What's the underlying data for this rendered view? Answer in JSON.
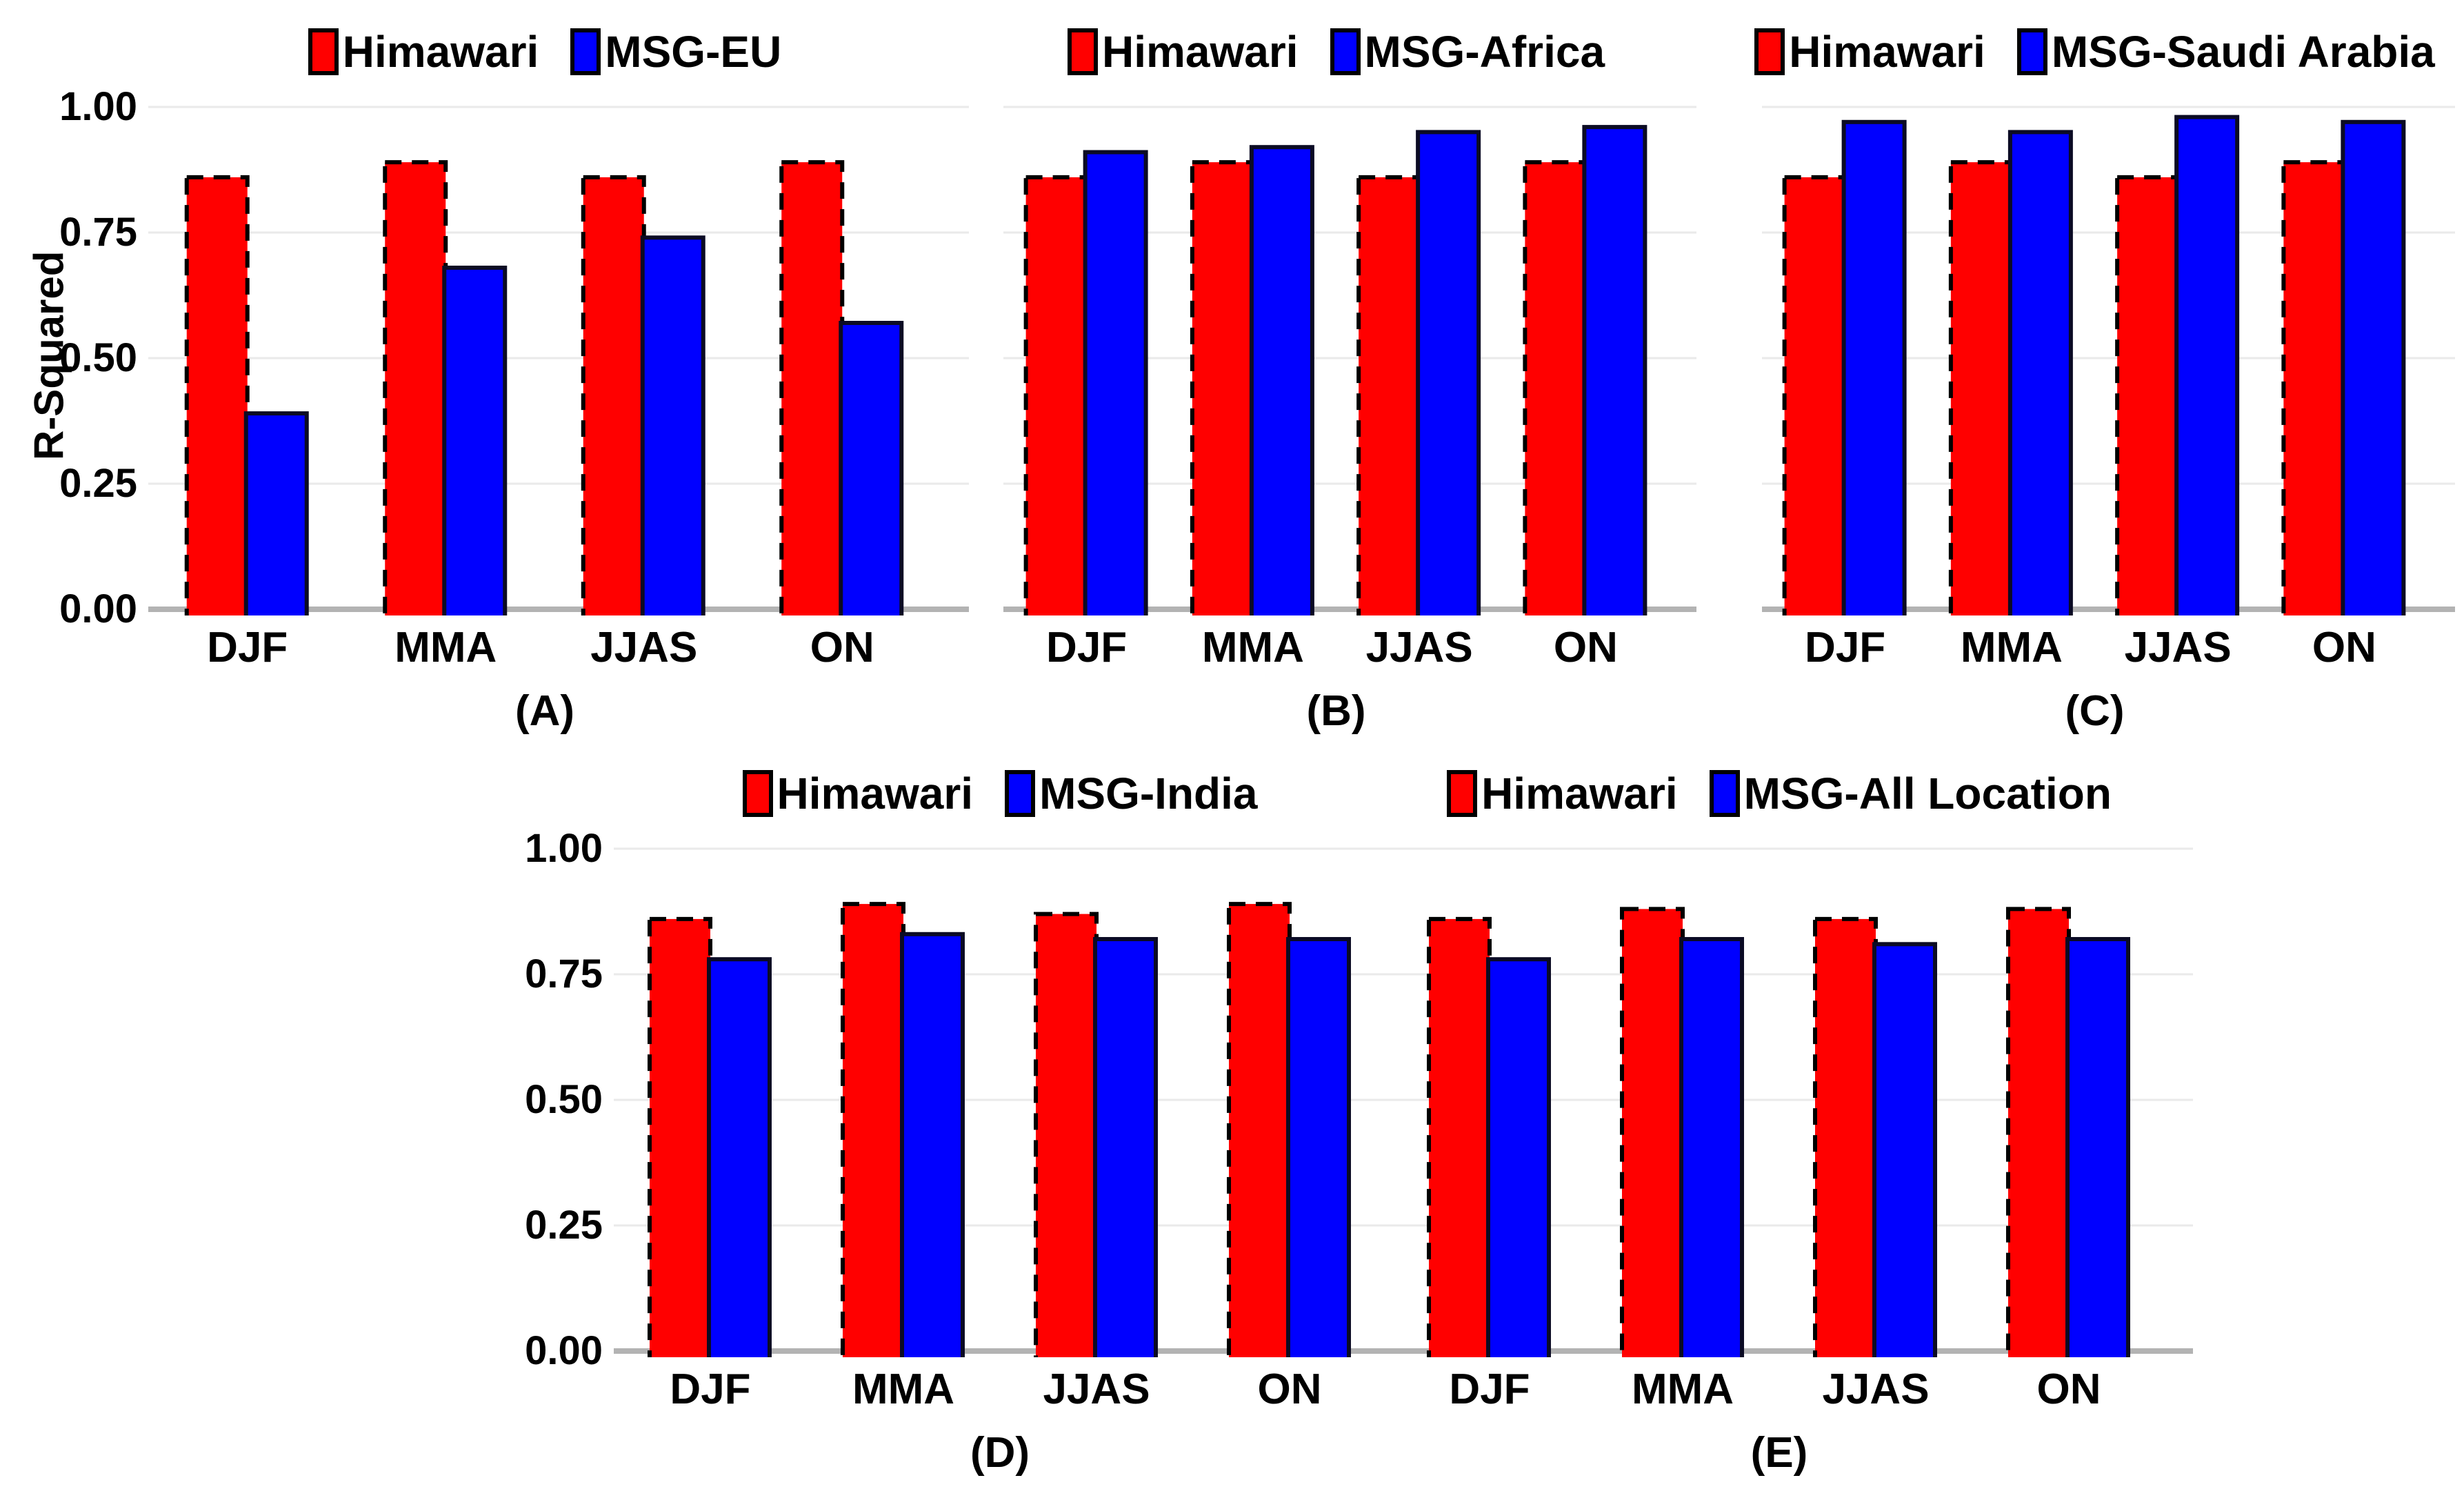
{
  "figure": {
    "ylabel": "R-Squared",
    "ytick_labels": [
      "1.00",
      "0.75",
      "0.50",
      "0.25",
      "0.00"
    ],
    "categories": [
      "DJF",
      "MMA",
      "JJAS",
      "ON"
    ],
    "colors": {
      "himawari": "#FF0000",
      "msg": "#0000FF",
      "gridline": "#EAEAEA",
      "baseline": "#B3B3B3"
    }
  },
  "chart_data": [
    {
      "type": "bar",
      "panel_label": "(A)",
      "ylabel": "R-Squared",
      "ylim": [
        0,
        1
      ],
      "yticks": [
        1.0,
        0.75,
        0.5,
        0.25,
        0.0
      ],
      "ytick_labels": [
        "1.00",
        "0.75",
        "0.50",
        "0.25",
        "0.00"
      ],
      "categories": [
        "DJF",
        "MMA",
        "JJAS",
        "ON"
      ],
      "grid": true,
      "legend_position": "top",
      "series": [
        {
          "name": "Himawari",
          "color": "#FF0000",
          "values": [
            0.86,
            0.89,
            0.86,
            0.89
          ]
        },
        {
          "name": "MSG-EU",
          "color": "#0000FF",
          "values": [
            0.39,
            0.68,
            0.74,
            0.57
          ]
        }
      ]
    },
    {
      "type": "bar",
      "panel_label": "(B)",
      "ylim": [
        0,
        1
      ],
      "yticks": [
        1.0,
        0.75,
        0.5,
        0.25,
        0.0
      ],
      "ytick_labels": [
        "1.00",
        "0.75",
        "0.50",
        "0.25",
        "0.00"
      ],
      "categories": [
        "DJF",
        "MMA",
        "JJAS",
        "ON"
      ],
      "grid": true,
      "legend_position": "top",
      "series": [
        {
          "name": "Himawari",
          "color": "#FF0000",
          "values": [
            0.86,
            0.89,
            0.86,
            0.89
          ]
        },
        {
          "name": "MSG-Africa",
          "color": "#0000FF",
          "values": [
            0.91,
            0.92,
            0.95,
            0.96
          ]
        }
      ]
    },
    {
      "type": "bar",
      "panel_label": "(C)",
      "ylim": [
        0,
        1
      ],
      "yticks": [
        1.0,
        0.75,
        0.5,
        0.25,
        0.0
      ],
      "ytick_labels": [
        "1.00",
        "0.75",
        "0.50",
        "0.25",
        "0.00"
      ],
      "categories": [
        "DJF",
        "MMA",
        "JJAS",
        "ON"
      ],
      "grid": true,
      "legend_position": "top",
      "series": [
        {
          "name": "Himawari",
          "color": "#FF0000",
          "values": [
            0.86,
            0.89,
            0.86,
            0.89
          ]
        },
        {
          "name": "MSG-Saudi Arabia",
          "color": "#0000FF",
          "values": [
            0.97,
            0.95,
            0.98,
            0.97
          ]
        }
      ]
    },
    {
      "type": "bar",
      "panel_label": "(D)",
      "ylim": [
        0,
        1
      ],
      "yticks": [
        1.0,
        0.75,
        0.5,
        0.25,
        0.0
      ],
      "ytick_labels": [
        "1.00",
        "0.75",
        "0.50",
        "0.25",
        "0.00"
      ],
      "categories": [
        "DJF",
        "MMA",
        "JJAS",
        "ON"
      ],
      "grid": true,
      "legend_position": "top",
      "series": [
        {
          "name": "Himawari",
          "color": "#FF0000",
          "values": [
            0.86,
            0.89,
            0.87,
            0.89
          ]
        },
        {
          "name": "MSG-India",
          "color": "#0000FF",
          "values": [
            0.78,
            0.83,
            0.82,
            0.82
          ]
        }
      ]
    },
    {
      "type": "bar",
      "panel_label": "(E)",
      "ylim": [
        0,
        1
      ],
      "yticks": [
        1.0,
        0.75,
        0.5,
        0.25,
        0.0
      ],
      "ytick_labels": [
        "1.00",
        "0.75",
        "0.50",
        "0.25",
        "0.00"
      ],
      "categories": [
        "DJF",
        "MMA",
        "JJAS",
        "ON"
      ],
      "grid": true,
      "legend_position": "top",
      "series": [
        {
          "name": "Himawari",
          "color": "#FF0000",
          "values": [
            0.86,
            0.88,
            0.86,
            0.88
          ]
        },
        {
          "name": "MSG-All Location",
          "color": "#0000FF",
          "values": [
            0.78,
            0.82,
            0.81,
            0.82
          ]
        }
      ]
    }
  ]
}
